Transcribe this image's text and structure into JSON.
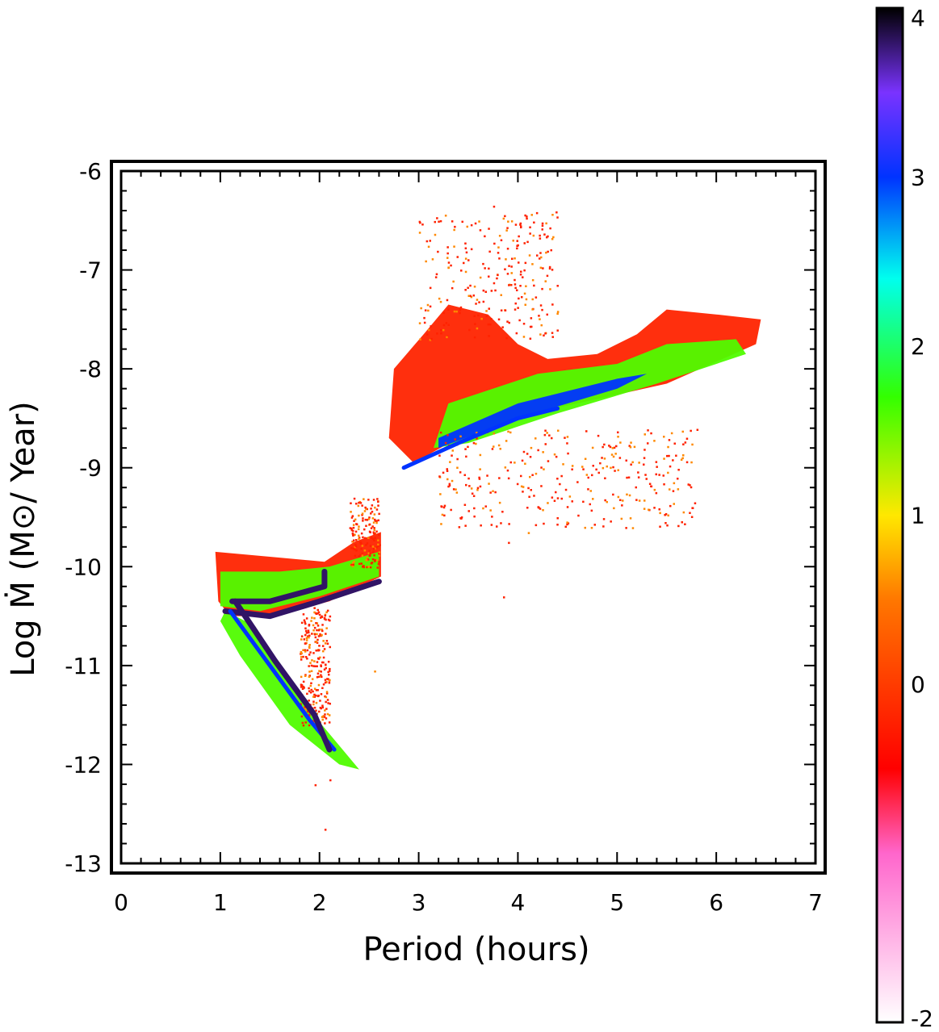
{
  "chart_data": {
    "type": "heatmap",
    "xlabel": "Period (hours)",
    "ylabel": "Log Ṁ (M⊙/ Year)",
    "xlim": [
      0,
      7
    ],
    "ylim": [
      -13,
      -6
    ],
    "x_ticks": [
      "0",
      "1",
      "2",
      "3",
      "4",
      "5",
      "6",
      "7"
    ],
    "y_ticks": [
      "-6",
      "-7",
      "-8",
      "-9",
      "-10",
      "-11",
      "-12",
      "-13"
    ],
    "grid": false,
    "colorbar": {
      "range": [
        -2,
        4
      ],
      "ticks": [
        "4",
        "3",
        "2",
        "1",
        "0",
        "-2"
      ],
      "stops": [
        {
          "value": -2,
          "color": "#ffffff"
        },
        {
          "value": -1,
          "color": "#ff66cc"
        },
        {
          "value": -0.5,
          "color": "#ff0000"
        },
        {
          "value": 0.5,
          "color": "#ff7700"
        },
        {
          "value": 1,
          "color": "#ffe800"
        },
        {
          "value": 1.7,
          "color": "#33ff00"
        },
        {
          "value": 2.4,
          "color": "#00ffee"
        },
        {
          "value": 3,
          "color": "#0033ff"
        },
        {
          "value": 3.5,
          "color": "#7a33ff"
        },
        {
          "value": 4,
          "color": "#000000"
        }
      ],
      "location": "right"
    },
    "regions": [
      {
        "name": "long-period-envelope",
        "level": "low",
        "outline": [
          [
            3.05,
            -7.65
          ],
          [
            3.3,
            -7.35
          ],
          [
            3.7,
            -7.45
          ],
          [
            4.0,
            -7.75
          ],
          [
            4.3,
            -7.9
          ],
          [
            4.8,
            -7.85
          ],
          [
            5.2,
            -7.65
          ],
          [
            5.5,
            -7.4
          ],
          [
            6.0,
            -7.45
          ],
          [
            6.45,
            -7.5
          ],
          [
            6.4,
            -7.75
          ],
          [
            5.5,
            -8.15
          ],
          [
            4.6,
            -8.35
          ],
          [
            3.9,
            -8.5
          ],
          [
            3.4,
            -8.7
          ],
          [
            2.95,
            -8.95
          ],
          [
            2.7,
            -8.7
          ],
          [
            2.75,
            -8.0
          ]
        ]
      },
      {
        "name": "long-period-mid",
        "level": "medium",
        "outline": [
          [
            3.3,
            -8.35
          ],
          [
            4.2,
            -8.05
          ],
          [
            5.0,
            -7.95
          ],
          [
            5.5,
            -7.75
          ],
          [
            6.2,
            -7.7
          ],
          [
            6.3,
            -7.85
          ],
          [
            5.4,
            -8.15
          ],
          [
            4.4,
            -8.45
          ],
          [
            3.5,
            -8.75
          ],
          [
            3.15,
            -8.8
          ]
        ]
      },
      {
        "name": "long-period-core",
        "level": "high",
        "outline": [
          [
            3.2,
            -8.7
          ],
          [
            4.0,
            -8.35
          ],
          [
            5.0,
            -8.1
          ],
          [
            5.3,
            -8.05
          ],
          [
            5.0,
            -8.2
          ],
          [
            4.0,
            -8.5
          ],
          [
            3.2,
            -8.8
          ]
        ]
      },
      {
        "name": "short-period-envelope",
        "level": "low",
        "outline": [
          [
            0.95,
            -9.85
          ],
          [
            1.5,
            -9.9
          ],
          [
            2.05,
            -9.95
          ],
          [
            2.35,
            -9.75
          ],
          [
            2.62,
            -9.65
          ],
          [
            2.62,
            -10.1
          ],
          [
            2.1,
            -10.35
          ],
          [
            1.55,
            -10.5
          ],
          [
            1.1,
            -10.5
          ],
          [
            0.98,
            -10.35
          ]
        ]
      },
      {
        "name": "short-period-mid",
        "level": "medium",
        "outline": [
          [
            1.0,
            -10.05
          ],
          [
            1.6,
            -10.05
          ],
          [
            2.1,
            -10.0
          ],
          [
            2.6,
            -9.85
          ],
          [
            2.6,
            -10.1
          ],
          [
            2.0,
            -10.3
          ],
          [
            1.4,
            -10.45
          ],
          [
            1.0,
            -10.4
          ]
        ]
      },
      {
        "name": "period-bounce-band",
        "level": "medium",
        "outline": [
          [
            1.05,
            -10.45
          ],
          [
            1.35,
            -10.6
          ],
          [
            1.9,
            -11.45
          ],
          [
            2.4,
            -12.05
          ],
          [
            2.2,
            -12.0
          ],
          [
            1.7,
            -11.6
          ],
          [
            1.2,
            -10.9
          ],
          [
            1.0,
            -10.55
          ]
        ]
      }
    ],
    "tracks": [
      {
        "name": "upper-track",
        "level": "very-high",
        "points": [
          [
            1.12,
            -10.35
          ],
          [
            1.5,
            -10.35
          ],
          [
            2.05,
            -10.2
          ],
          [
            2.05,
            -10.05
          ]
        ]
      },
      {
        "name": "middle-track",
        "level": "very-high",
        "points": [
          [
            1.05,
            -10.45
          ],
          [
            1.5,
            -10.5
          ],
          [
            2.0,
            -10.35
          ],
          [
            2.6,
            -10.15
          ]
        ]
      },
      {
        "name": "bounce-track-outer",
        "level": "high",
        "points": [
          [
            1.1,
            -10.45
          ],
          [
            1.5,
            -11.0
          ],
          [
            1.9,
            -11.55
          ],
          [
            2.15,
            -11.85
          ]
        ]
      },
      {
        "name": "bounce-track-inner",
        "level": "very-high",
        "points": [
          [
            1.15,
            -10.35
          ],
          [
            1.55,
            -10.95
          ],
          [
            1.95,
            -11.5
          ],
          [
            2.1,
            -11.85
          ]
        ]
      },
      {
        "name": "long-period-ridge",
        "level": "high",
        "points": [
          [
            2.85,
            -9.0
          ],
          [
            3.4,
            -8.75
          ],
          [
            4.0,
            -8.5
          ],
          [
            4.4,
            -8.4
          ]
        ]
      }
    ],
    "scatter_clouds": [
      {
        "name": "upper-scatter",
        "level": "low",
        "x_range": [
          3.0,
          4.4
        ],
        "y_range": [
          -7.7,
          -6.4
        ],
        "count": 260
      },
      {
        "name": "lower-scatter",
        "level": "low",
        "x_range": [
          3.2,
          5.8
        ],
        "y_range": [
          -9.6,
          -8.6
        ],
        "count": 320
      },
      {
        "name": "vertical-stripe",
        "level": "low",
        "x_range": [
          1.8,
          2.1
        ],
        "y_range": [
          -11.6,
          -10.4
        ],
        "count": 260
      },
      {
        "name": "gap-scatter",
        "level": "low",
        "x_range": [
          2.3,
          2.6
        ],
        "y_range": [
          -10.0,
          -9.3
        ],
        "count": 160
      },
      {
        "name": "outliers",
        "level": "low",
        "points": [
          [
            2.05,
            -12.65
          ],
          [
            2.1,
            -12.15
          ],
          [
            1.95,
            -12.2
          ],
          [
            3.85,
            -10.3
          ],
          [
            4.1,
            -9.65
          ],
          [
            5.15,
            -9.6
          ],
          [
            3.55,
            -9.4
          ],
          [
            5.6,
            -9.1
          ],
          [
            3.75,
            -6.35
          ],
          [
            4.0,
            -6.65
          ],
          [
            3.6,
            -6.5
          ],
          [
            2.55,
            -11.05
          ],
          [
            2.3,
            -9.6
          ],
          [
            3.9,
            -9.75
          ]
        ]
      }
    ]
  }
}
